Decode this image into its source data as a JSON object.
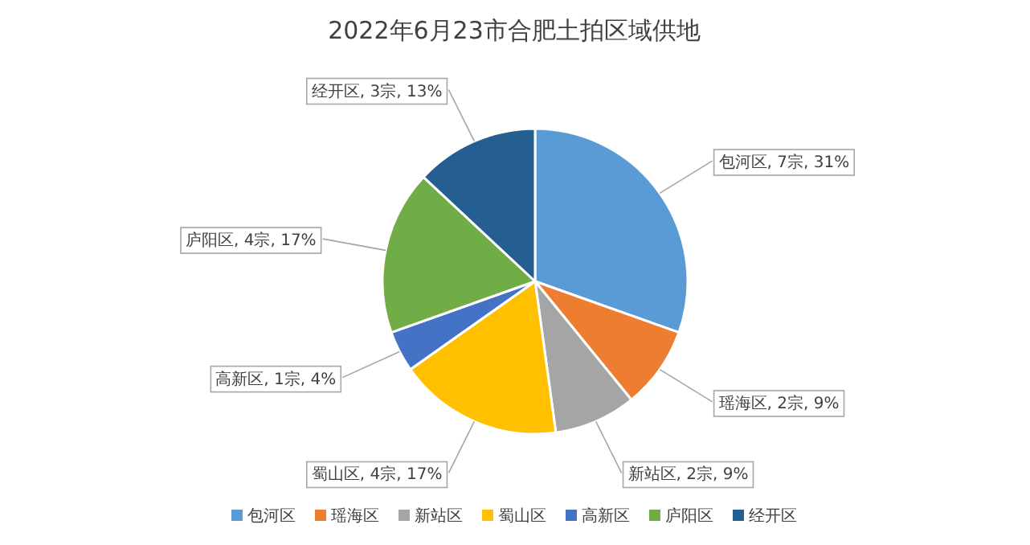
{
  "chart_data": {
    "type": "pie",
    "title": "2022年6月23市合肥土拍区域供地",
    "categories": [
      "包河区",
      "瑶海区",
      "新站区",
      "蜀山区",
      "高新区",
      "庐阳区",
      "经开区"
    ],
    "values": [
      7,
      2,
      2,
      4,
      1,
      4,
      3
    ],
    "value_labels": [
      "包河区, 7宗, 31%",
      "瑶海区, 2宗, 9%",
      "新站区, 2宗, 9%",
      "蜀山区, 4宗, 17%",
      "高新区, 1宗, 4%",
      "庐阳区, 4宗, 17%",
      "经开区, 3宗, 13%"
    ],
    "colors": [
      "#5b9bd5",
      "#ed7d31",
      "#a5a5a5",
      "#ffc000",
      "#4472c4",
      "#70ad47",
      "#255e91"
    ],
    "legend": "bottom"
  }
}
